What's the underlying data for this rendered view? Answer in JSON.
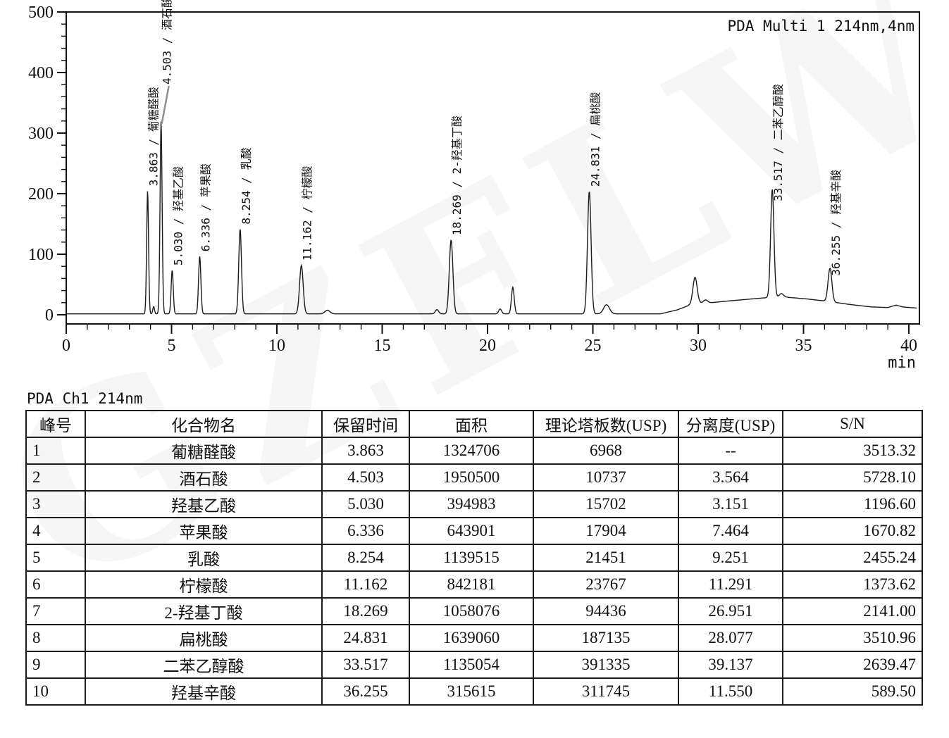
{
  "watermark": {
    "text": "GZFLW"
  },
  "colors": {
    "background": "#ffffff",
    "ink": "#111111",
    "trace": "#1c1c1c",
    "leader_line": "#8f8f8f"
  },
  "chart_data": {
    "type": "line",
    "title": "PDA Multi 1 214nm,4nm",
    "xlabel": "min",
    "ylabel": "",
    "xlim": [
      0,
      40
    ],
    "ylim": [
      0,
      500
    ],
    "x_major_ticks": [
      0,
      5,
      10,
      15,
      20,
      25,
      30,
      35,
      40
    ],
    "x_minor_step": 1,
    "y_major_ticks": [
      0,
      100,
      200,
      300,
      400,
      500
    ],
    "y_minor_step": 20,
    "grid": false,
    "legend_position": "top-right-inside",
    "peak_label_format": "{rt} / {compound}",
    "peaks": [
      {
        "num": 1,
        "rt": 3.863,
        "rt_label": "3.863",
        "compound": "葡糖醛酸",
        "apex_height": 203,
        "sigma": 0.045
      },
      {
        "num": 2,
        "rt": 4.503,
        "rt_label": "4.503",
        "compound": "酒石酸",
        "apex_height": 318,
        "sigma": 0.05
      },
      {
        "num": 3,
        "rt": 5.03,
        "rt_label": "5.030",
        "compound": "羟基乙酸",
        "apex_height": 72,
        "sigma": 0.05
      },
      {
        "num": 4,
        "rt": 6.336,
        "rt_label": "6.336",
        "compound": "苹果酸",
        "apex_height": 95,
        "sigma": 0.055
      },
      {
        "num": 5,
        "rt": 8.254,
        "rt_label": "8.254",
        "compound": "乳酸",
        "apex_height": 140,
        "sigma": 0.065
      },
      {
        "num": 6,
        "rt": 11.162,
        "rt_label": "11.162",
        "compound": "柠檬酸",
        "apex_height": 80,
        "sigma": 0.085
      },
      {
        "num": 7,
        "rt": 18.269,
        "rt_label": "18.269",
        "compound": "2-羟基丁酸",
        "apex_height": 122,
        "sigma": 0.085
      },
      {
        "num": 8,
        "rt": 24.831,
        "rt_label": "24.831",
        "compound": "扁桃酸",
        "apex_height": 202,
        "sigma": 0.085
      },
      {
        "num": 9,
        "rt": 33.517,
        "rt_label": "33.517",
        "compound": "二苯乙醇酸",
        "apex_height": 178,
        "sigma": 0.08
      },
      {
        "num": 10,
        "rt": 36.255,
        "rt_label": "36.255",
        "compound": "羟基辛酸",
        "apex_height": 55,
        "sigma": 0.09
      }
    ],
    "unlabeled_peaks": [
      {
        "rt": 4.15,
        "height": 12,
        "sigma": 0.04
      },
      {
        "rt": 12.4,
        "height": 6,
        "sigma": 0.12
      },
      {
        "rt": 17.6,
        "height": 7,
        "sigma": 0.08
      },
      {
        "rt": 20.6,
        "height": 8,
        "sigma": 0.07
      },
      {
        "rt": 21.2,
        "height": 44,
        "sigma": 0.065
      },
      {
        "rt": 25.65,
        "height": 15,
        "sigma": 0.14
      },
      {
        "rt": 29.85,
        "height": 44,
        "sigma": 0.1
      },
      {
        "rt": 30.35,
        "height": 5,
        "sigma": 0.1
      },
      {
        "rt": 33.95,
        "height": 6,
        "sigma": 0.1
      }
    ],
    "baseline_points": [
      [
        0,
        1.5
      ],
      [
        3.5,
        1.5
      ],
      [
        28.2,
        1.5
      ],
      [
        29.0,
        8
      ],
      [
        29.6,
        16
      ],
      [
        30.0,
        19
      ],
      [
        30.6,
        20
      ],
      [
        31.5,
        23
      ],
      [
        32.5,
        26
      ],
      [
        33.5,
        29
      ],
      [
        34.2,
        29
      ],
      [
        35.2,
        26
      ],
      [
        36.2,
        22
      ],
      [
        37.2,
        17
      ],
      [
        38.2,
        13
      ],
      [
        39.0,
        12
      ],
      [
        39.4,
        16
      ],
      [
        39.7,
        13
      ],
      [
        40.4,
        11
      ]
    ]
  },
  "table": {
    "title": "PDA Ch1 214nm",
    "headers": [
      "峰号",
      "化合物名",
      "保留时间",
      "面积",
      "理论塔板数(USP)",
      "分离度(USP)",
      "S/N"
    ],
    "rows": [
      [
        "1",
        "葡糖醛酸",
        "3.863",
        "1324706",
        "6968",
        "--",
        "3513.32"
      ],
      [
        "2",
        "酒石酸",
        "4.503",
        "1950500",
        "10737",
        "3.564",
        "5728.10"
      ],
      [
        "3",
        "羟基乙酸",
        "5.030",
        "394983",
        "15702",
        "3.151",
        "1196.60"
      ],
      [
        "4",
        "苹果酸",
        "6.336",
        "643901",
        "17904",
        "7.464",
        "1670.82"
      ],
      [
        "5",
        "乳酸",
        "8.254",
        "1139515",
        "21451",
        "9.251",
        "2455.24"
      ],
      [
        "6",
        "柠檬酸",
        "11.162",
        "842181",
        "23767",
        "11.291",
        "1373.62"
      ],
      [
        "7",
        "2-羟基丁酸",
        "18.269",
        "1058076",
        "94436",
        "26.951",
        "2141.00"
      ],
      [
        "8",
        "扁桃酸",
        "24.831",
        "1639060",
        "187135",
        "28.077",
        "3510.96"
      ],
      [
        "9",
        "二苯乙醇酸",
        "33.517",
        "1135054",
        "391335",
        "39.137",
        "2639.47"
      ],
      [
        "10",
        "羟基辛酸",
        "36.255",
        "315615",
        "311745",
        "11.550",
        "589.50"
      ]
    ]
  }
}
